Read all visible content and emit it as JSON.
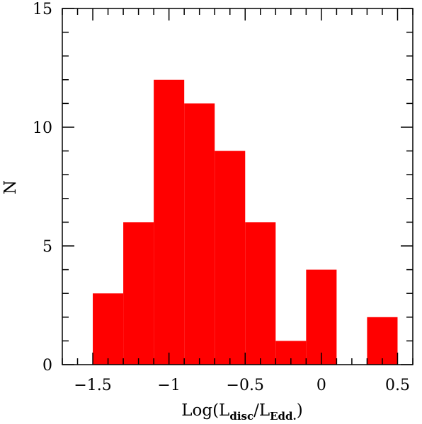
{
  "chart_data": {
    "type": "bar",
    "title": "",
    "xlabel": {
      "prefix": "Log(L",
      "sub1": "disc",
      "mid": "/L",
      "sub2": "Edd.",
      "suffix": ")"
    },
    "ylabel": "N",
    "xlim": [
      -1.7,
      0.6
    ],
    "ylim": [
      0,
      15
    ],
    "bin_width": 0.2,
    "bins": [
      {
        "x0": -1.5,
        "x1": -1.3,
        "count": 3
      },
      {
        "x0": -1.3,
        "x1": -1.1,
        "count": 6
      },
      {
        "x0": -1.1,
        "x1": -0.9,
        "count": 12
      },
      {
        "x0": -0.9,
        "x1": -0.7,
        "count": 11
      },
      {
        "x0": -0.7,
        "x1": -0.5,
        "count": 9
      },
      {
        "x0": -0.5,
        "x1": -0.3,
        "count": 6
      },
      {
        "x0": -0.3,
        "x1": -0.1,
        "count": 1
      },
      {
        "x0": -0.1,
        "x1": 0.1,
        "count": 4
      },
      {
        "x0": 0.1,
        "x1": 0.3,
        "count": 0
      },
      {
        "x0": 0.3,
        "x1": 0.5,
        "count": 2
      }
    ],
    "x_ticks": [
      {
        "value": -1.5,
        "label": "−1.5"
      },
      {
        "value": -1.0,
        "label": "−1"
      },
      {
        "value": -0.5,
        "label": "−0.5"
      },
      {
        "value": 0.0,
        "label": "0"
      },
      {
        "value": 0.5,
        "label": "0.5"
      }
    ],
    "x_minor_step": 0.1,
    "y_ticks": [
      {
        "value": 0,
        "label": "0"
      },
      {
        "value": 5,
        "label": "5"
      },
      {
        "value": 10,
        "label": "10"
      },
      {
        "value": 15,
        "label": "15"
      }
    ],
    "y_minor_step": 1,
    "bar_color": "#ff0000",
    "grid": false,
    "legend": "none"
  }
}
